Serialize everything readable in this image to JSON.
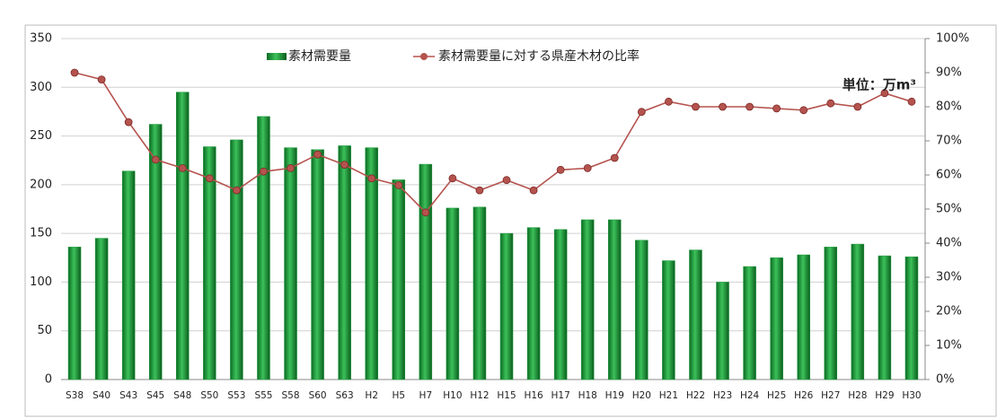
{
  "chart_data": {
    "type": "bar_line",
    "unit_label": "単位：万m³",
    "categories": [
      "S38",
      "S40",
      "S43",
      "S45",
      "S48",
      "S50",
      "S53",
      "S55",
      "S58",
      "S60",
      "S63",
      "H2",
      "H5",
      "H7",
      "H10",
      "H12",
      "H15",
      "H16",
      "H17",
      "H18",
      "H19",
      "H20",
      "H21",
      "H22",
      "H23",
      "H24",
      "H25",
      "H26",
      "H27",
      "H28",
      "H29",
      "H30"
    ],
    "series": [
      {
        "name": "素材需要量",
        "color": "#1e9a3c",
        "type": "bar",
        "values": [
          136,
          145,
          214,
          262,
          295,
          239,
          246,
          270,
          238,
          236,
          240,
          238,
          205,
          221,
          176,
          177,
          150,
          156,
          154,
          164,
          164,
          143,
          122,
          133,
          100,
          116,
          125,
          128,
          136,
          139,
          127,
          126
        ]
      },
      {
        "name": "素材需要量に対する県産木材の比率",
        "color": "#b5534e",
        "type": "line",
        "axis": "y2",
        "values": [
          90,
          88,
          75.5,
          64.5,
          62,
          59,
          55.5,
          61,
          62,
          66,
          63,
          59,
          57,
          49,
          59,
          55.5,
          58.5,
          55.5,
          61.5,
          62,
          65,
          78.5,
          81.5,
          80,
          80,
          80,
          79.5,
          79,
          81,
          80,
          84,
          81.5
        ]
      }
    ],
    "ylim": [
      0,
      350
    ],
    "yticks": [
      0,
      50,
      100,
      150,
      200,
      250,
      300,
      350
    ],
    "y2lim": [
      0,
      100
    ],
    "y2ticks": [
      {
        "value": 0,
        "label": "0%"
      },
      {
        "value": 10,
        "label": "10%"
      },
      {
        "value": 20,
        "label": "20%"
      },
      {
        "value": 30,
        "label": "30%"
      },
      {
        "value": 40,
        "label": "40%"
      },
      {
        "value": 50,
        "label": "50%"
      },
      {
        "value": 60,
        "label": "60%"
      },
      {
        "value": 70,
        "label": "70%"
      },
      {
        "value": 80,
        "label": "80%"
      },
      {
        "value": 90,
        "label": "90%"
      },
      {
        "value": 100,
        "label": "100%"
      }
    ],
    "grid": true
  }
}
